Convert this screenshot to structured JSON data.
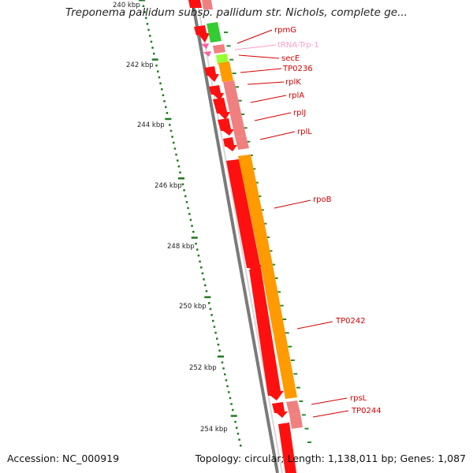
{
  "title": "Treponema pallidum subsp. pallidum str. Nichols, complete ge...",
  "footer": {
    "accession": "Accession: NC_000919",
    "stats": "Topology: circular; Length: 1,138,011 bp; Genes: 1,087"
  },
  "colors": {
    "cds": "#ff1010",
    "cds_dark": "#c00000",
    "trna": "#ff9fc5",
    "rrna_light": "#f08080",
    "gc_skew": "#ff9a00",
    "green": "#33cc33",
    "lime": "#99ff33",
    "backbone": "#7a7a7a",
    "tick": "#1f7a1f",
    "label": "#d40000"
  },
  "scale": {
    "unit": "kbp",
    "major_ticks": [
      {
        "kbp": 240,
        "label": "240 kbp"
      },
      {
        "kbp": 242,
        "label": "242 kbp"
      },
      {
        "kbp": 244,
        "label": "244 kbp"
      },
      {
        "kbp": 246,
        "label": "246 kbp"
      },
      {
        "kbp": 248,
        "label": "248 kbp"
      },
      {
        "kbp": 250,
        "label": "250 kbp"
      },
      {
        "kbp": 252,
        "label": "252 kbp"
      },
      {
        "kbp": 254,
        "label": "254 kbp"
      }
    ]
  },
  "genes": [
    {
      "name": "rpmG",
      "color": "#d40000"
    },
    {
      "name": "tRNA-Trp-1",
      "color": "#ff9fc5"
    },
    {
      "name": "secE",
      "color": "#d40000"
    },
    {
      "name": "TP0236",
      "color": "#d40000"
    },
    {
      "name": "rplK",
      "color": "#d40000"
    },
    {
      "name": "rplA",
      "color": "#d40000"
    },
    {
      "name": "rplJ",
      "color": "#d40000"
    },
    {
      "name": "rplL",
      "color": "#d40000"
    },
    {
      "name": "rpoB",
      "color": "#d40000"
    },
    {
      "name": "TP0242",
      "color": "#d40000"
    },
    {
      "name": "rpsL",
      "color": "#d40000"
    },
    {
      "name": "TP0244",
      "color": "#d40000"
    }
  ]
}
